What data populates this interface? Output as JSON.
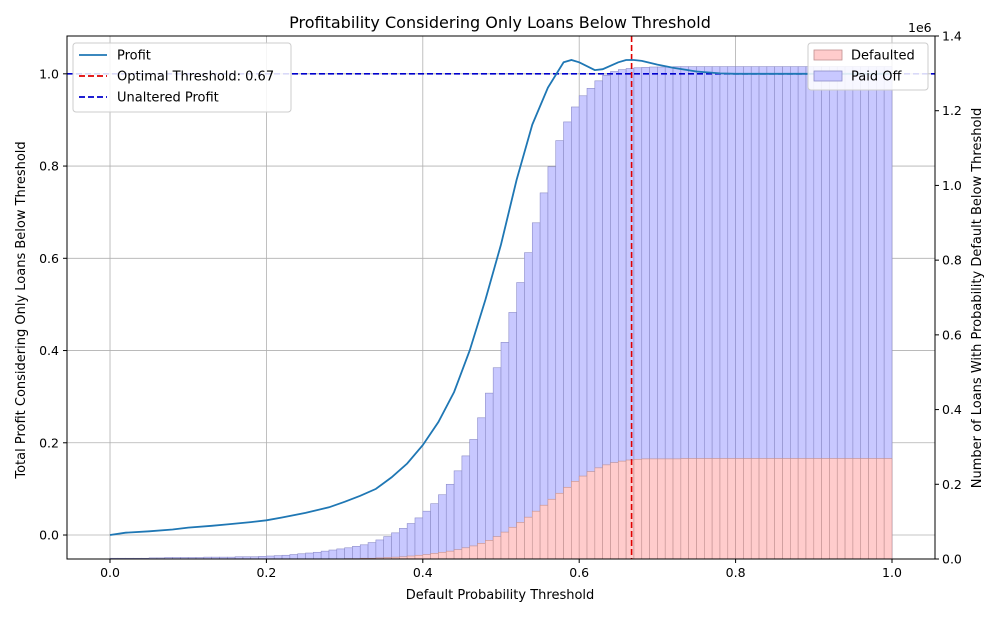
{
  "chart_data": {
    "type": "line+histogram",
    "title": "Profitability Considering Only Loans Below Threshold",
    "xlabel": "Default Probability Threshold",
    "ylabel_left": "Total Profit Considering Only Loans Below Threshold",
    "ylabel_right": "Number of Loans With Probability Default Below Threshold",
    "right_axis_multiplier": "1e6",
    "xlim": [
      -0.055,
      1.055
    ],
    "ylim_left": [
      -0.052,
      1.082
    ],
    "ylim_right": [
      0,
      1.4
    ],
    "x_ticks": [
      0.0,
      0.2,
      0.4,
      0.6,
      0.8,
      1.0
    ],
    "x_tick_labels": [
      "0.0",
      "0.2",
      "0.4",
      "0.6",
      "0.8",
      "1.0"
    ],
    "y_left_ticks": [
      0.0,
      0.2,
      0.4,
      0.6,
      0.8,
      1.0
    ],
    "y_left_tick_labels": [
      "0.0",
      "0.2",
      "0.4",
      "0.6",
      "0.8",
      "1.0"
    ],
    "y_right_ticks": [
      0,
      0.2,
      0.4,
      0.6,
      0.8,
      1.0,
      1.2,
      1.4
    ],
    "y_right_tick_labels": [
      "0.0",
      "0.2",
      "0.4",
      "0.6",
      "0.8",
      "1.0",
      "1.2",
      "1.4"
    ],
    "grid": true,
    "colors": {
      "profit": "#1f77b4",
      "optimal": "#e00000",
      "unaltered": "#0000cc",
      "defaulted_fill": "#ffcccc",
      "defaulted_edge": "#c09090",
      "paidoff_fill": "#c8c8ff",
      "paidoff_edge": "#8c8cc8",
      "grid": "#b0b0b0"
    },
    "legend_left": {
      "placement": "upper-left",
      "entries": [
        "Profit",
        "Optimal Threshold: 0.67",
        "Unaltered Profit"
      ]
    },
    "legend_right": {
      "placement": "upper-right",
      "entries": [
        "Defaulted",
        "Paid Off"
      ]
    },
    "optimal_threshold": 0.667,
    "unaltered_profit": 1.0,
    "profit_series": {
      "name": "Profit",
      "x": [
        0.0,
        0.02,
        0.05,
        0.08,
        0.1,
        0.13,
        0.15,
        0.18,
        0.2,
        0.22,
        0.25,
        0.28,
        0.3,
        0.32,
        0.34,
        0.36,
        0.38,
        0.4,
        0.42,
        0.44,
        0.46,
        0.48,
        0.5,
        0.52,
        0.54,
        0.56,
        0.58,
        0.59,
        0.6,
        0.62,
        0.63,
        0.65,
        0.66,
        0.67,
        0.68,
        0.7,
        0.72,
        0.75,
        0.78,
        0.8,
        0.85,
        0.9,
        0.95,
        1.0
      ],
      "y": [
        0.0,
        0.005,
        0.008,
        0.012,
        0.016,
        0.02,
        0.023,
        0.028,
        0.032,
        0.038,
        0.048,
        0.06,
        0.072,
        0.085,
        0.1,
        0.125,
        0.155,
        0.195,
        0.245,
        0.31,
        0.4,
        0.51,
        0.63,
        0.77,
        0.89,
        0.97,
        1.025,
        1.03,
        1.025,
        1.008,
        1.01,
        1.025,
        1.03,
        1.03,
        1.028,
        1.02,
        1.013,
        1.005,
        1.001,
        1.0,
        1.0,
        1.0,
        1.0,
        1.0
      ]
    },
    "histogram": {
      "bin_width": 0.01,
      "bin_start": 0.0,
      "paid_off_total": [
        0.002,
        0.002,
        0.002,
        0.002,
        0.002,
        0.003,
        0.003,
        0.004,
        0.004,
        0.004,
        0.004,
        0.004,
        0.005,
        0.005,
        0.005,
        0.005,
        0.006,
        0.006,
        0.006,
        0.007,
        0.008,
        0.009,
        0.01,
        0.012,
        0.014,
        0.016,
        0.018,
        0.021,
        0.024,
        0.027,
        0.03,
        0.034,
        0.038,
        0.044,
        0.051,
        0.06,
        0.07,
        0.082,
        0.095,
        0.11,
        0.128,
        0.148,
        0.172,
        0.2,
        0.236,
        0.276,
        0.32,
        0.378,
        0.444,
        0.512,
        0.58,
        0.66,
        0.74,
        0.82,
        0.9,
        0.98,
        1.05,
        1.12,
        1.17,
        1.21,
        1.24,
        1.26,
        1.28,
        1.295,
        1.305,
        1.31,
        1.313,
        1.315,
        1.316,
        1.317,
        1.317,
        1.317,
        1.318,
        1.318,
        1.318,
        1.318,
        1.318,
        1.318,
        1.318,
        1.318,
        1.318,
        1.318,
        1.318,
        1.318,
        1.318,
        1.318,
        1.318,
        1.318,
        1.318,
        1.318,
        1.318,
        1.318,
        1.318,
        1.318,
        1.318,
        1.318,
        1.318,
        1.318,
        1.318,
        1.318
      ],
      "defaulted": [
        0.0,
        0.0,
        0.0,
        0.0,
        0.0,
        0.0,
        0.0,
        0.0,
        0.0,
        0.0,
        0.0,
        0.0,
        0.0,
        0.0,
        0.0,
        0.0,
        0.0,
        0.0,
        0.0,
        0.0,
        0.0,
        0.0,
        0.0,
        0.0,
        0.0,
        0.0,
        0.0,
        0.0,
        0.0,
        0.0,
        0.001,
        0.001,
        0.002,
        0.002,
        0.003,
        0.004,
        0.005,
        0.006,
        0.008,
        0.01,
        0.012,
        0.015,
        0.018,
        0.021,
        0.025,
        0.03,
        0.035,
        0.042,
        0.05,
        0.06,
        0.072,
        0.085,
        0.098,
        0.112,
        0.128,
        0.144,
        0.16,
        0.176,
        0.192,
        0.208,
        0.222,
        0.234,
        0.244,
        0.252,
        0.258,
        0.262,
        0.265,
        0.267,
        0.268,
        0.268,
        0.268,
        0.268,
        0.268,
        0.269,
        0.269,
        0.269,
        0.269,
        0.269,
        0.269,
        0.269,
        0.269,
        0.269,
        0.269,
        0.269,
        0.269,
        0.269,
        0.269,
        0.269,
        0.269,
        0.269,
        0.269,
        0.269,
        0.269,
        0.269,
        0.269,
        0.269,
        0.269,
        0.269,
        0.269,
        0.269
      ]
    }
  }
}
